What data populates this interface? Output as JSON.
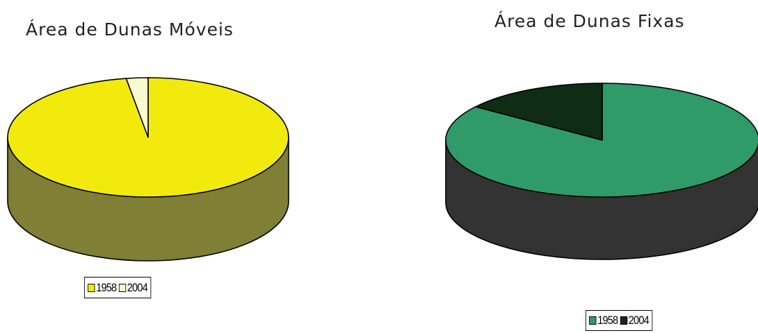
{
  "chart_data": [
    {
      "type": "pie",
      "title": "Área de Dunas Móveis",
      "categories": [
        "1958",
        "2004"
      ],
      "values": [
        97.5,
        2.5
      ],
      "colors": [
        "#f2ea0c",
        "#fafad0"
      ],
      "side_colors": [
        "#7f7f35",
        "#8c8c50"
      ],
      "legend": {
        "position": "bottom",
        "entries": [
          "1958",
          "2004"
        ]
      }
    },
    {
      "type": "pie",
      "title": "Área de Dunas Fixas",
      "categories": [
        "1958",
        "2004"
      ],
      "values": [
        85,
        15
      ],
      "colors": [
        "#2f9b68",
        "#0f2c14"
      ],
      "side_colors": [
        "#333333",
        "#1e1e1e"
      ],
      "legend": {
        "position": "bottom-right",
        "entries": [
          "1958",
          "2004"
        ]
      }
    }
  ]
}
